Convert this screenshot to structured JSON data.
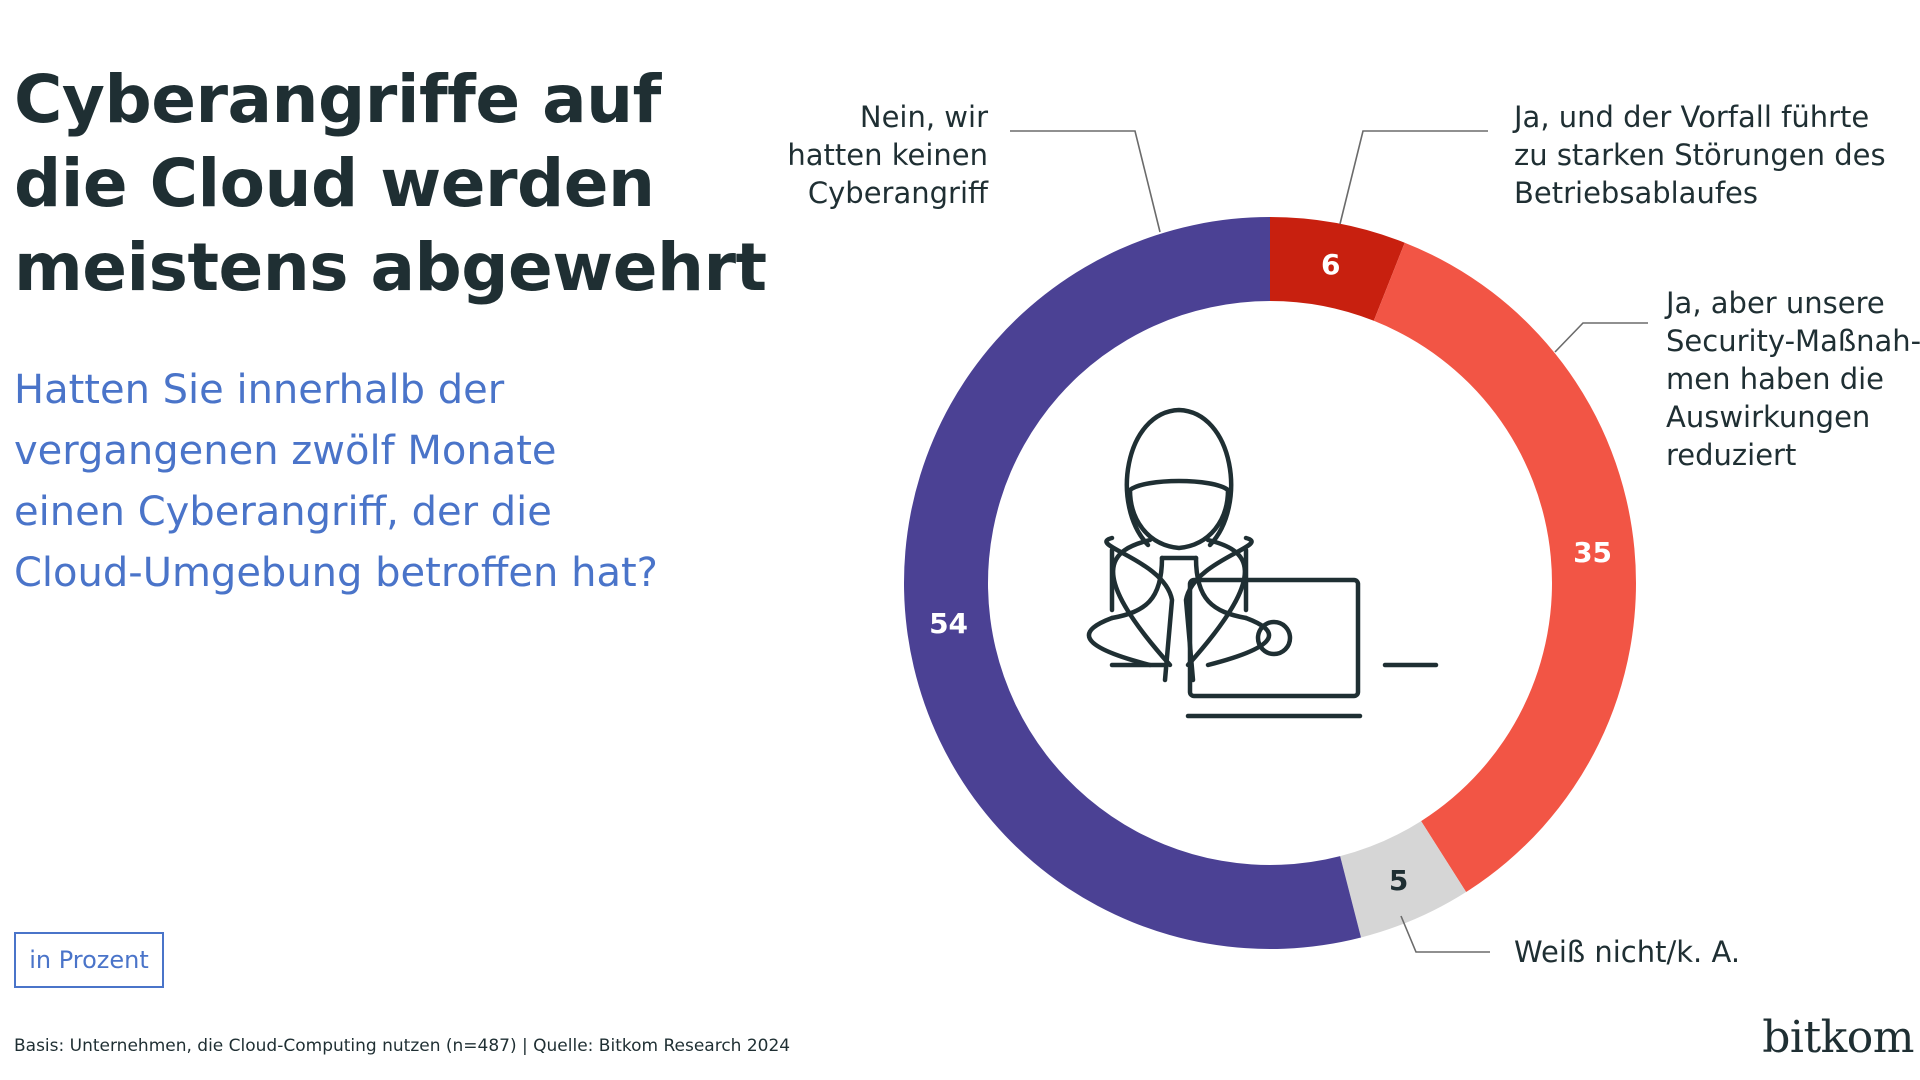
{
  "title_lines": [
    "Cyberangriffe auf",
    "die Cloud werden",
    "meistens abgewehrt"
  ],
  "question_lines": [
    "Hatten Sie innerhalb der",
    "vergangenen zwölf Monate",
    "einen Cyberangriff, der die",
    "Cloud-Umgebung betroffen hat?"
  ],
  "unit_label": "in Prozent",
  "footnote": "Basis: Unternehmen, die Cloud-Computing nutzen (n=487) | Quelle: Bitkom Research 2024",
  "brand": "bitkom",
  "colors": {
    "title": "#1f2f33",
    "accent": "#4a74c9",
    "dark_red": "#c8200f",
    "red": "#f25545",
    "gray": "#d6d6d6",
    "purple": "#4b4194"
  },
  "chart_data": {
    "type": "pie",
    "variant": "donut",
    "unit": "Prozent",
    "start_angle_deg": 0,
    "direction": "clockwise",
    "slices": [
      {
        "label_lines": [
          "Ja, und der Vorfall führte",
          "zu starken Störungen des",
          "Betriebsablaufes"
        ],
        "value": 6,
        "value_label": "6",
        "color": "#c8200f",
        "value_text_color": "#ffffff"
      },
      {
        "label_lines": [
          "Ja, aber unsere",
          "Security-Maßnah-",
          "men haben die",
          "Auswirkungen",
          "reduziert"
        ],
        "value": 35,
        "value_label": "35",
        "color": "#f25545",
        "value_text_color": "#ffffff"
      },
      {
        "label_lines": [
          "Weiß nicht/k. A."
        ],
        "value": 5,
        "value_label": "5",
        "color": "#d6d6d6",
        "value_text_color": "#1f2f33"
      },
      {
        "label_lines": [
          "Nein, wir",
          "hatten keinen",
          "Cyberangriff"
        ],
        "value": 54,
        "value_label": "54",
        "color": "#4b4194",
        "value_text_color": "#ffffff"
      }
    ],
    "center_icon": "hacker-with-laptop-icon"
  }
}
